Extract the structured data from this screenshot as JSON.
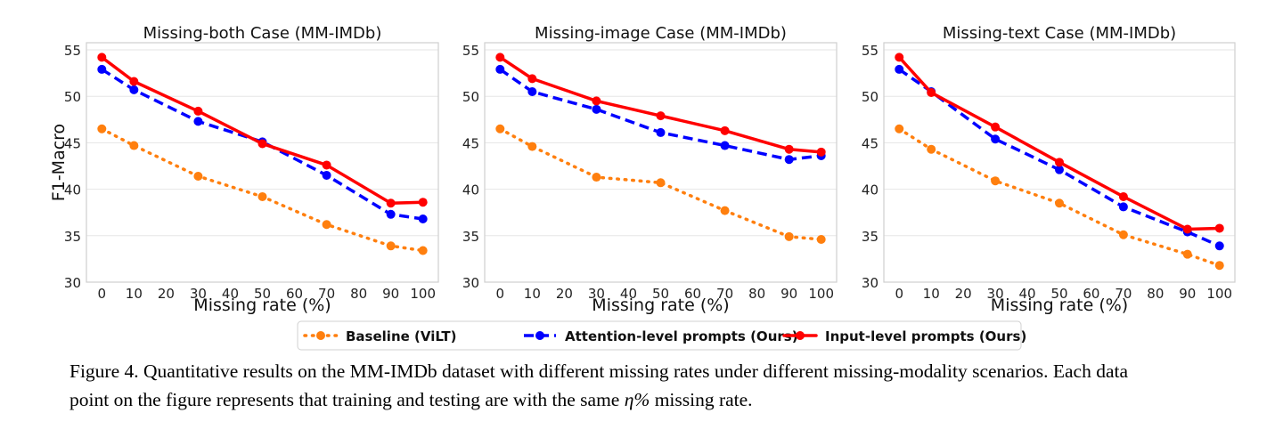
{
  "chart_data": [
    {
      "type": "line",
      "title": "Missing-both Case (MM-IMDb)",
      "xlabel": "Missing rate (%)",
      "ylabel": "F1-Macro",
      "x": [
        0,
        10,
        30,
        50,
        70,
        90,
        100
      ],
      "xticks": [
        0,
        10,
        20,
        30,
        40,
        50,
        60,
        70,
        80,
        90,
        100
      ],
      "yticks": [
        30,
        35,
        40,
        45,
        50,
        55
      ],
      "ylim": [
        30,
        55
      ],
      "grid": "horizontal",
      "series": [
        {
          "name": "Baseline (ViLT)",
          "values": [
            46.5,
            44.7,
            41.4,
            39.2,
            36.2,
            33.9,
            33.4
          ]
        },
        {
          "name": "Attention-level prompts (Ours)",
          "values": [
            52.9,
            50.7,
            47.3,
            45.1,
            41.5,
            37.3,
            36.8
          ]
        },
        {
          "name": "Input-level prompts (Ours)",
          "values": [
            54.2,
            51.6,
            48.4,
            44.9,
            42.6,
            38.5,
            38.6
          ]
        }
      ]
    },
    {
      "type": "line",
      "title": "Missing-image Case (MM-IMDb)",
      "xlabel": "Missing rate (%)",
      "ylabel": "",
      "x": [
        0,
        10,
        30,
        50,
        70,
        90,
        100
      ],
      "xticks": [
        0,
        10,
        20,
        30,
        40,
        50,
        60,
        70,
        80,
        90,
        100
      ],
      "yticks": [
        30,
        35,
        40,
        45,
        50,
        55
      ],
      "ylim": [
        30,
        55
      ],
      "grid": "horizontal",
      "series": [
        {
          "name": "Baseline (ViLT)",
          "values": [
            46.5,
            44.6,
            41.3,
            40.7,
            37.7,
            34.9,
            34.6
          ]
        },
        {
          "name": "Attention-level prompts (Ours)",
          "values": [
            52.9,
            50.5,
            48.6,
            46.1,
            44.7,
            43.2,
            43.6
          ]
        },
        {
          "name": "Input-level prompts (Ours)",
          "values": [
            54.2,
            51.9,
            49.5,
            47.9,
            46.3,
            44.3,
            44.0
          ]
        }
      ]
    },
    {
      "type": "line",
      "title": "Missing-text Case (MM-IMDb)",
      "xlabel": "Missing rate (%)",
      "ylabel": "",
      "x": [
        0,
        10,
        30,
        50,
        70,
        90,
        100
      ],
      "xticks": [
        0,
        10,
        20,
        30,
        40,
        50,
        60,
        70,
        80,
        90,
        100
      ],
      "yticks": [
        30,
        35,
        40,
        45,
        50,
        55
      ],
      "ylim": [
        30,
        55
      ],
      "grid": "horizontal",
      "series": [
        {
          "name": "Baseline (ViLT)",
          "values": [
            46.5,
            44.3,
            40.9,
            38.5,
            35.1,
            33.0,
            31.8
          ]
        },
        {
          "name": "Attention-level prompts (Ours)",
          "values": [
            52.9,
            50.5,
            45.4,
            42.1,
            38.1,
            35.4,
            33.9
          ]
        },
        {
          "name": "Input-level prompts (Ours)",
          "values": [
            54.2,
            50.4,
            46.7,
            42.9,
            39.2,
            35.7,
            35.8
          ]
        }
      ]
    }
  ],
  "legend": {
    "placement": "bottom-center",
    "entries": [
      {
        "label": "Baseline (ViLT)",
        "color": "#ff7f0e",
        "style": "dotted"
      },
      {
        "label": "Attention-level prompts (Ours)",
        "color": "#0000ff",
        "style": "dashed"
      },
      {
        "label": "Input-level prompts (Ours)",
        "color": "#ff0000",
        "style": "solid"
      }
    ]
  },
  "caption": {
    "line1": "Figure 4. Quantitative results on the MM-IMDb dataset with different missing rates under different missing-modality scenarios. Each data",
    "line2_before": "point on the figure represents that training and testing are with the same ",
    "line2_math": "η%",
    "line2_after": " missing rate."
  }
}
